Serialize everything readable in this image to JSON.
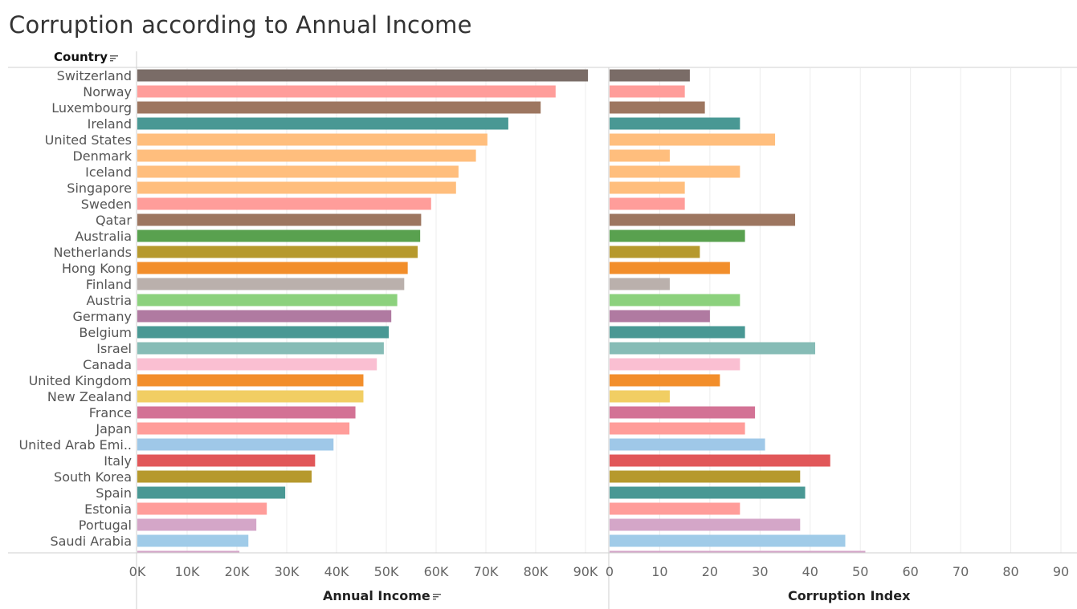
{
  "title": "Corruption according to Annual Income",
  "row_header": "Country",
  "chart_data": {
    "type": "bar",
    "orientation": "horizontal",
    "categories": [
      "Switzerland",
      "Norway",
      "Luxembourg",
      "Ireland",
      "United States",
      "Denmark",
      "Iceland",
      "Singapore",
      "Sweden",
      "Qatar",
      "Australia",
      "Netherlands",
      "Hong Kong",
      "Finland",
      "Austria",
      "Germany",
      "Belgium",
      "Israel",
      "Canada",
      "United Kingdom",
      "New Zealand",
      "France",
      "Japan",
      "United Arab Emi..",
      "Italy",
      "South Korea",
      "Spain",
      "Estonia",
      "Portugal",
      "Saudi Arabia",
      ""
    ],
    "colors": [
      "#7a6c67",
      "#ff9d9a",
      "#9d7660",
      "#499894",
      "#ffbe7d",
      "#ffbe7d",
      "#ffbe7d",
      "#ffbe7d",
      "#ff9d9a",
      "#9d7660",
      "#59a14f",
      "#b6992d",
      "#f28e2b",
      "#bab0ac",
      "#8cd17d",
      "#b07aa1",
      "#499894",
      "#86bcb6",
      "#fabfd2",
      "#f28e2b",
      "#f1ce63",
      "#d37295",
      "#ff9d9a",
      "#9fc8e8",
      "#e15759",
      "#b6992d",
      "#499894",
      "#ff9d9a",
      "#d4a6c8",
      "#a0cbe8",
      "#d4a6c8"
    ],
    "series": [
      {
        "name": "Annual Income",
        "values": [
          90500,
          84000,
          81000,
          74500,
          70300,
          68000,
          64500,
          64000,
          59000,
          57000,
          56800,
          56300,
          54300,
          53600,
          52200,
          51000,
          50500,
          49500,
          48100,
          45400,
          45400,
          43800,
          42600,
          39400,
          35700,
          35000,
          29700,
          26000,
          23900,
          22300,
          20500
        ],
        "ticks": [
          "0K",
          "10K",
          "20K",
          "30K",
          "40K",
          "50K",
          "60K",
          "70K",
          "80K",
          "90K"
        ],
        "xlim": [
          0,
          95000
        ]
      },
      {
        "name": "Corruption Index",
        "values": [
          16,
          15,
          19,
          26,
          33,
          12,
          26,
          15,
          15,
          37,
          27,
          18,
          24,
          12,
          26,
          20,
          27,
          41,
          26,
          22,
          12,
          29,
          27,
          31,
          44,
          38,
          39,
          26,
          38,
          47,
          51
        ],
        "ticks": [
          "0",
          "10",
          "20",
          "30",
          "40",
          "50",
          "60",
          "70",
          "80",
          "90"
        ],
        "xlim": [
          0,
          92
        ]
      }
    ],
    "xlabel_left": "Annual Income",
    "xlabel_right": "Corruption Index",
    "grid": true
  }
}
